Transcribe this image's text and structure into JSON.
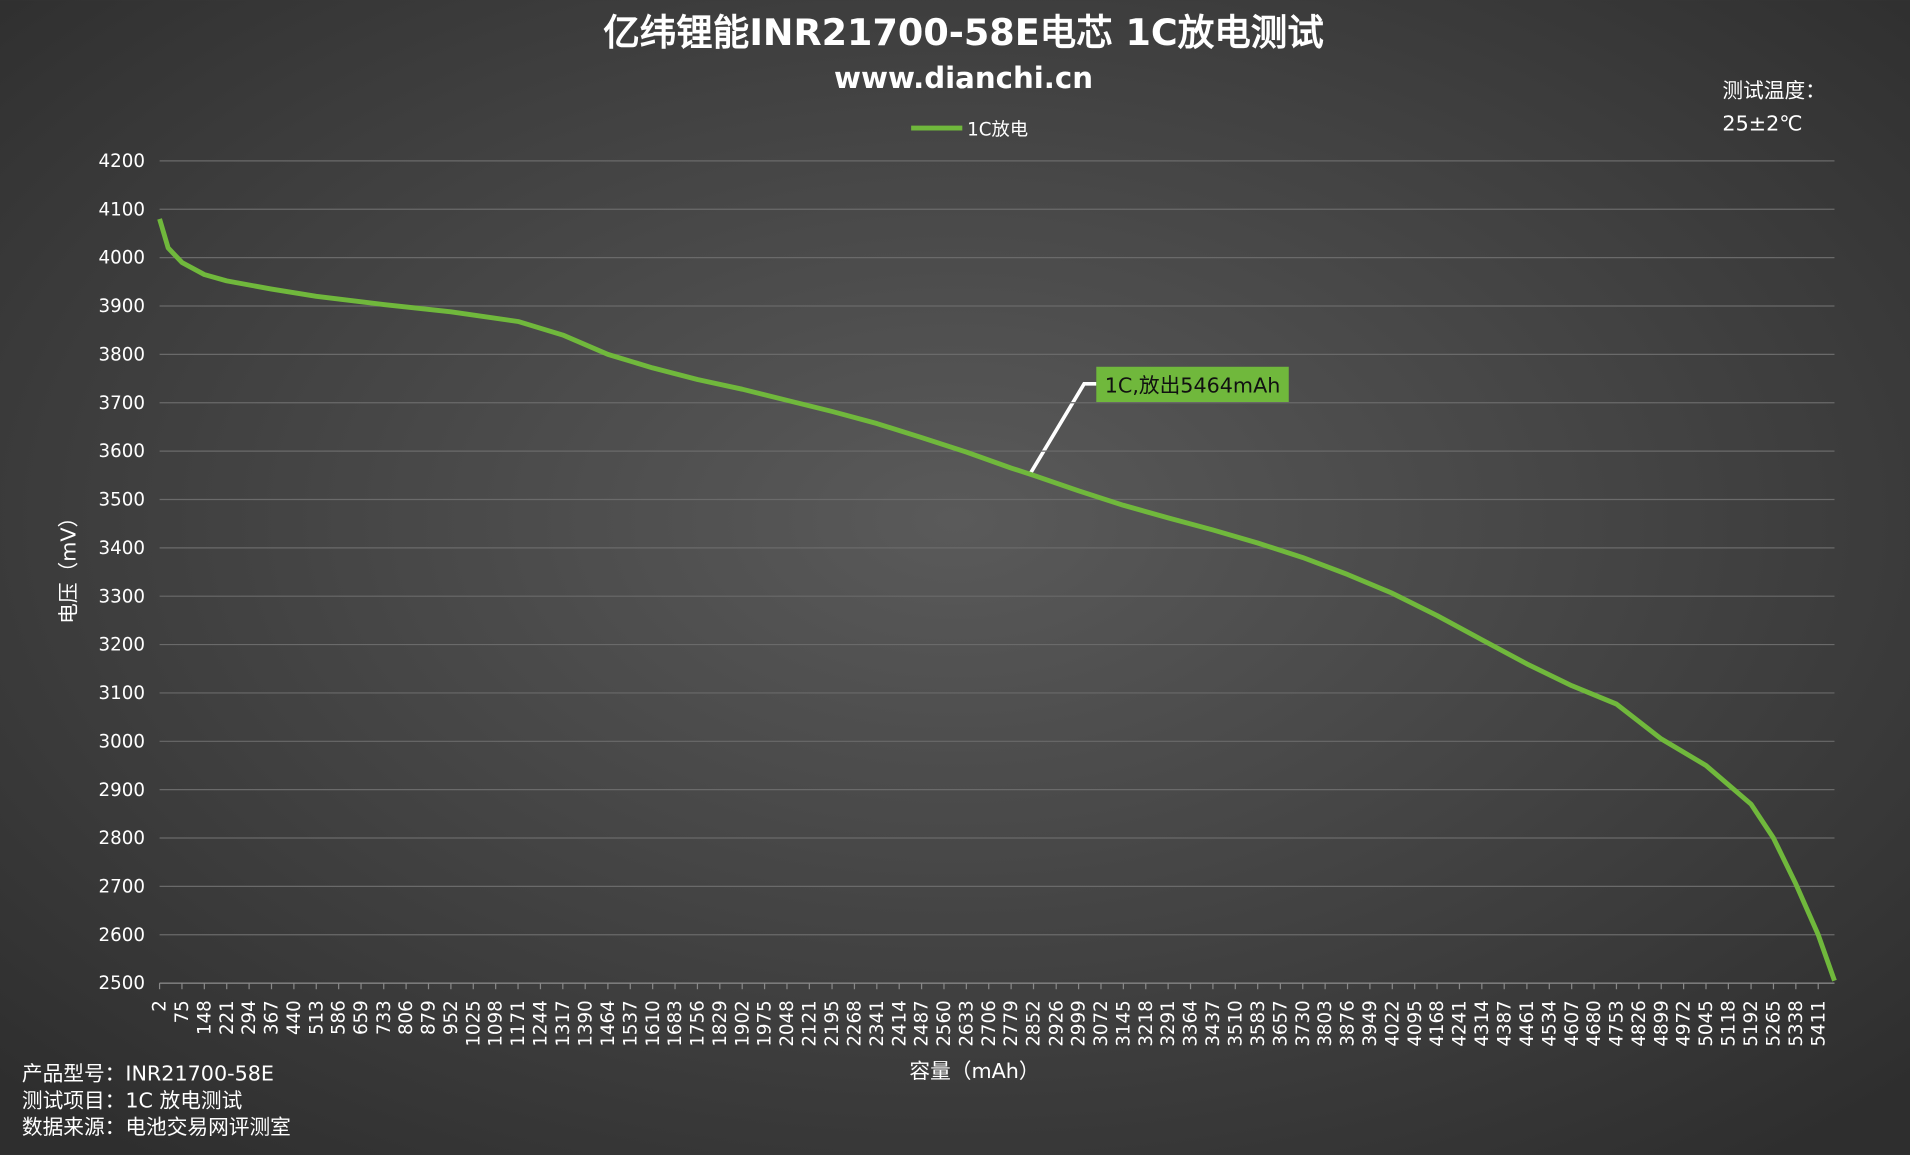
{
  "chart_data": {
    "type": "line",
    "title": "亿纬锂能INR21700-58E电芯 1C放电测试",
    "subtitle": "www.dianchi.cn",
    "x_label": "容量（mAh）",
    "y_label": "电压（mV）",
    "temperature_label": "测试温度：",
    "temperature_value": "25±2℃",
    "annotation": "1C,放出5464mAh",
    "footer": [
      "产品型号：INR21700-58E",
      "测试项目：1C 放电测试",
      "数据来源：电池交易网评测室"
    ],
    "legend": "top",
    "grid": true,
    "xlim": [
      2,
      5464
    ],
    "ylim": [
      2500,
      4200
    ],
    "yticks": [
      2500,
      2600,
      2700,
      2800,
      2900,
      3000,
      3100,
      3200,
      3300,
      3400,
      3500,
      3600,
      3700,
      3800,
      3900,
      4000,
      4100,
      4200
    ],
    "xticks": [
      2,
      75,
      148,
      221,
      294,
      367,
      440,
      513,
      586,
      659,
      733,
      806,
      879,
      952,
      1025,
      1098,
      1171,
      1244,
      1317,
      1390,
      1464,
      1537,
      1610,
      1683,
      1756,
      1829,
      1902,
      1975,
      2048,
      2121,
      2195,
      2268,
      2341,
      2414,
      2487,
      2560,
      2633,
      2706,
      2779,
      2852,
      2926,
      2999,
      3072,
      3145,
      3218,
      3291,
      3364,
      3437,
      3510,
      3583,
      3657,
      3730,
      3803,
      3876,
      3949,
      4022,
      4095,
      4168,
      4241,
      4314,
      4387,
      4461,
      4534,
      4607,
      4680,
      4753,
      4826,
      4899,
      4972,
      5045,
      5118,
      5192,
      5265,
      5338,
      5411
    ],
    "x": [
      2,
      30,
      75,
      148,
      221,
      367,
      513,
      733,
      952,
      1171,
      1317,
      1464,
      1610,
      1756,
      1902,
      2048,
      2195,
      2341,
      2487,
      2633,
      2779,
      2852,
      2999,
      3145,
      3291,
      3437,
      3583,
      3730,
      3876,
      4022,
      4168,
      4314,
      4461,
      4607,
      4753,
      4899,
      5045,
      5192,
      5265,
      5338,
      5411,
      5464
    ],
    "series": [
      {
        "name": "1C放电",
        "color": "#70b83c",
        "values": [
          4080,
          4020,
          3990,
          3965,
          3952,
          3935,
          3920,
          3903,
          3888,
          3868,
          3840,
          3800,
          3772,
          3748,
          3728,
          3705,
          3682,
          3657,
          3628,
          3598,
          3565,
          3550,
          3518,
          3488,
          3462,
          3437,
          3410,
          3380,
          3345,
          3306,
          3260,
          3210,
          3160,
          3115,
          3077,
          3005,
          2950,
          2870,
          2800,
          2705,
          2600,
          2505
        ]
      }
    ]
  }
}
